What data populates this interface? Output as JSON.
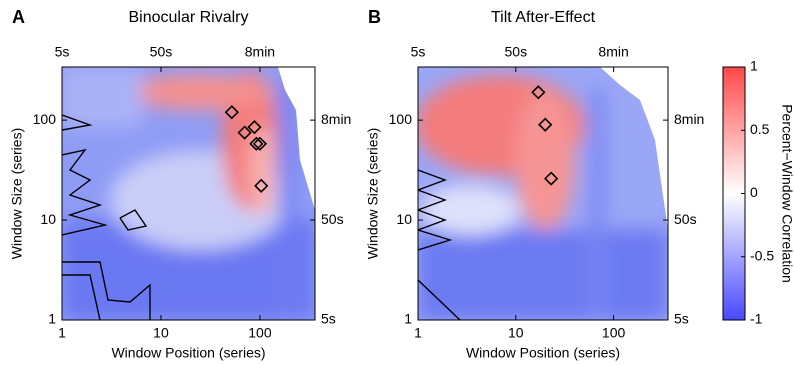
{
  "chart_data": [
    {
      "type": "scatter",
      "panel_label": "A",
      "title": "Binocular Rivalry",
      "xlabel": "Window Position (series)",
      "ylabel": "Window Size (series)",
      "log": true,
      "xlim": [
        1,
        360
      ],
      "ylim": [
        1,
        340
      ],
      "xticks": [
        1,
        10,
        100
      ],
      "yticks": [
        1,
        10,
        100
      ],
      "x2ticks": [
        {
          "value": 1,
          "label": "5s"
        },
        {
          "value": 10,
          "label": "50s"
        },
        {
          "value": 100,
          "label": "8min"
        }
      ],
      "y2ticks": [
        {
          "value": 1,
          "label": "5s"
        },
        {
          "value": 10,
          "label": "50s"
        },
        {
          "value": 100,
          "label": "8min"
        }
      ],
      "color": "#000000",
      "x": [
        52,
        70,
        88,
        92,
        100,
        103
      ],
      "values": [
        120,
        75,
        85,
        58,
        58,
        22
      ]
    },
    {
      "type": "scatter",
      "panel_label": "B",
      "title": "Tilt After-Effect",
      "xlabel": "Window Position (series)",
      "ylabel": "Window Size (series)",
      "log": true,
      "xlim": [
        1,
        360
      ],
      "ylim": [
        1,
        340
      ],
      "xticks": [
        1,
        10,
        100
      ],
      "yticks": [
        1,
        10,
        100
      ],
      "x2ticks": [
        {
          "value": 1,
          "label": "5s"
        },
        {
          "value": 10,
          "label": "50s"
        },
        {
          "value": 100,
          "label": "8min"
        }
      ],
      "y2ticks": [
        {
          "value": 1,
          "label": "5s"
        },
        {
          "value": 10,
          "label": "50s"
        },
        {
          "value": 100,
          "label": "8min"
        }
      ],
      "color": "#000000",
      "x": [
        17,
        20,
        23
      ],
      "values": [
        190,
        90,
        26
      ]
    },
    {
      "type": "colorbar",
      "label": "Percent−Window Correlation",
      "ylim": [
        -1,
        1
      ],
      "yticks": [
        -1,
        -0.5,
        0,
        0.5,
        1
      ],
      "colors": [
        "#4848ff",
        "#ffffff",
        "#ff4848"
      ]
    }
  ]
}
